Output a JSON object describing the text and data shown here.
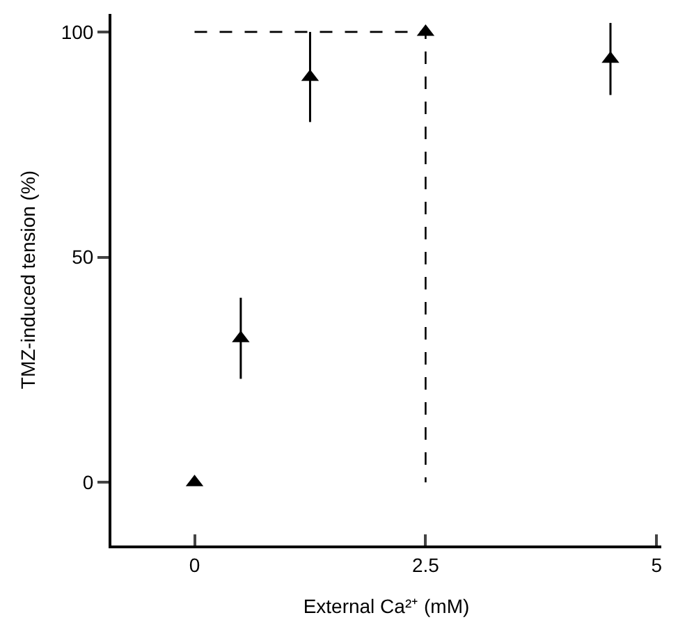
{
  "chart_data": {
    "type": "scatter",
    "xlabel": "External Ca²⁺ (mM)",
    "ylabel": "TMZ-induced tension (%)",
    "xlim": [
      -0.9,
      5.05
    ],
    "ylim": [
      -14,
      104
    ],
    "xticks": [
      0,
      2.5,
      5
    ],
    "yticks": [
      0,
      50,
      100
    ],
    "series": [
      {
        "color": "#000000",
        "marker": "triangle",
        "x": [
          0,
          0.5,
          1.25,
          2.5,
          4.5
        ],
        "values": [
          0,
          32,
          90,
          100,
          94
        ],
        "errors": [
          null,
          9,
          10,
          null,
          8
        ]
      },
      {
        "type": "line",
        "color": "#000000",
        "line_style": "dashed",
        "marker": "none",
        "x": [
          0,
          2.5,
          2.5
        ],
        "values": [
          100,
          100,
          0
        ]
      }
    ]
  }
}
